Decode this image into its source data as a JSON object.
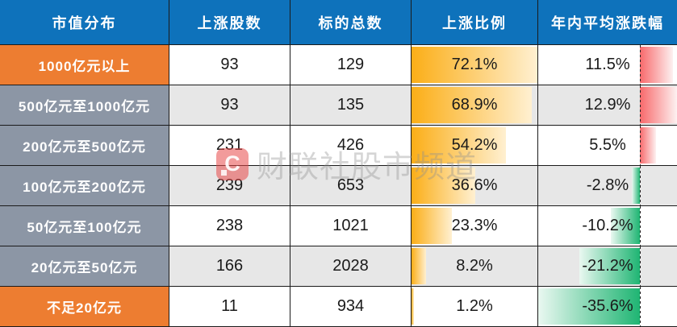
{
  "chart_data": {
    "type": "table",
    "title": "",
    "columns": [
      "市值分布",
      "上涨股数",
      "标的总数",
      "上涨比例",
      "年内平均涨跌幅"
    ],
    "rows": [
      [
        "1000亿元以上",
        93,
        129,
        "72.1%",
        "11.5%"
      ],
      [
        "500亿元至1000亿元",
        93,
        135,
        "68.9%",
        "12.9%"
      ],
      [
        "200亿元至500亿元",
        231,
        426,
        "54.2%",
        "5.5%"
      ],
      [
        "100亿元至200亿元",
        239,
        653,
        "36.6%",
        "-2.8%"
      ],
      [
        "50亿元至100亿元",
        238,
        1021,
        "23.3%",
        "-10.2%"
      ],
      [
        "20亿元至50亿元",
        166,
        2028,
        "8.2%",
        "-21.2%"
      ],
      [
        "不足20亿元",
        11,
        934,
        "1.2%",
        "-35.6%"
      ]
    ],
    "bar_columns": {
      "上涨比例": {
        "type": "databar",
        "color": "orange-gradient",
        "min": 0,
        "max": 72.1
      },
      "年内平均涨跌幅": {
        "type": "databar",
        "positive_color": "red-gradient",
        "negative_color": "green-gradient",
        "min": -35.6,
        "max": 12.9,
        "axis_fraction": 0.734
      }
    }
  },
  "table": {
    "headers": [
      "市值分布",
      "上涨股数",
      "标的总数",
      "上涨比例",
      "年内平均涨跌幅"
    ],
    "rows": [
      {
        "cells": [
          "1000亿元以上",
          "93",
          "129",
          "72.1%",
          "11.5%"
        ],
        "ratio": 72.1,
        "change": 11.5,
        "category": "orange",
        "zebra": false
      },
      {
        "cells": [
          "500亿元至1000亿元",
          "93",
          "135",
          "68.9%",
          "12.9%"
        ],
        "ratio": 68.9,
        "change": 12.9,
        "category": "slate",
        "zebra": true
      },
      {
        "cells": [
          "200亿元至500亿元",
          "231",
          "426",
          "54.2%",
          "5.5%"
        ],
        "ratio": 54.2,
        "change": 5.5,
        "category": "slate",
        "zebra": false
      },
      {
        "cells": [
          "100亿元至200亿元",
          "239",
          "653",
          "36.6%",
          "-2.8%"
        ],
        "ratio": 36.6,
        "change": -2.8,
        "category": "slate",
        "zebra": true
      },
      {
        "cells": [
          "50亿元至100亿元",
          "238",
          "1021",
          "23.3%",
          "-10.2%"
        ],
        "ratio": 23.3,
        "change": -10.2,
        "category": "slate",
        "zebra": false
      },
      {
        "cells": [
          "20亿元至50亿元",
          "166",
          "2028",
          "8.2%",
          "-21.2%"
        ],
        "ratio": 8.2,
        "change": -21.2,
        "category": "slate",
        "zebra": true
      },
      {
        "cells": [
          "不足20亿元",
          "11",
          "934",
          "1.2%",
          "-35.6%"
        ],
        "ratio": 1.2,
        "change": -35.6,
        "category": "orange",
        "zebra": false
      }
    ],
    "scales": {
      "ratio_max": 72.1,
      "neg_span": 35.6,
      "pos_span": 12.9,
      "axis_fraction": 0.734
    }
  },
  "watermark": {
    "logo_glyph": "C",
    "text": "财联社股市频道"
  },
  "colors": {
    "header_blue": "#0E72BB",
    "cat_orange": "#ED7D31",
    "cat_slate": "#8C96A5",
    "zebra_gray": "#E7E7E7",
    "bar_orange": "#FBAE17",
    "bar_orange_fade": "#FFF0D1",
    "bar_red": "#F8696B",
    "bar_red_fade": "#FDF1F1",
    "bar_green": "#1FB573",
    "bar_green_fade": "#EAF8F1"
  }
}
